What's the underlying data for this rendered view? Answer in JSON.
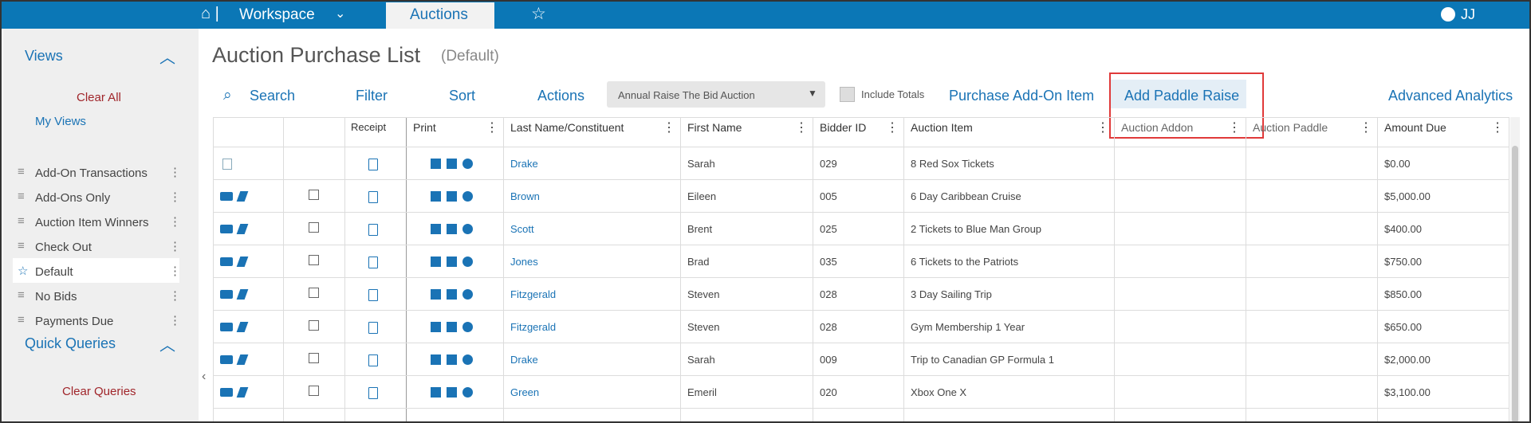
{
  "nav": {
    "workspace": "Workspace",
    "auctions": "Auctions",
    "user": "JJ"
  },
  "sidebar": {
    "views_title": "Views",
    "clear_all": "Clear All",
    "my_views": "My Views",
    "views": [
      "Add-On Transactions",
      "Add-Ons Only",
      "Auction Item Winners",
      "Check Out",
      "Default",
      "No Bids",
      "Payments Due"
    ],
    "quick_title": "Quick Queries",
    "clear_queries": "Clear Queries"
  },
  "header": {
    "title": "Auction Purchase List",
    "subtitle": "(Default)"
  },
  "toolbar": {
    "search": "Search",
    "filter": "Filter",
    "sort": "Sort",
    "actions": "Actions",
    "dropdown": "Annual Raise The Bid Auction",
    "include_totals": "Include Totals",
    "purchase_addon": "Purchase Add-On Item",
    "add_paddle": "Add Paddle Raise",
    "analytics": "Advanced Analytics"
  },
  "table": {
    "columns": [
      "Receipt",
      "Print",
      "Last Name/Constituent",
      "First Name",
      "Bidder ID",
      "Auction Item",
      "Auction Addon",
      "Auction Paddle",
      "Amount Due"
    ],
    "rows": [
      [
        "Drake",
        "Sarah",
        "029",
        "8 Red Sox Tickets",
        "$0.00"
      ],
      [
        "Brown",
        "Eileen",
        "005",
        "6 Day Caribbean Cruise",
        "$5,000.00"
      ],
      [
        "Scott",
        "Brent",
        "025",
        "2 Tickets to Blue Man Group",
        "$400.00"
      ],
      [
        "Jones",
        "Brad",
        "035",
        "6 Tickets to the Patriots",
        "$750.00"
      ],
      [
        "Fitzgerald",
        "Steven",
        "028",
        "3 Day Sailing Trip",
        "$850.00"
      ],
      [
        "Fitzgerald",
        "Steven",
        "028",
        "Gym Membership 1 Year",
        "$650.00"
      ],
      [
        "Drake",
        "Sarah",
        "009",
        "Trip to Canadian GP Formula 1",
        "$2,000.00"
      ],
      [
        "Green",
        "Emeril",
        "020",
        "Xbox One X",
        "$3,100.00"
      ]
    ]
  }
}
